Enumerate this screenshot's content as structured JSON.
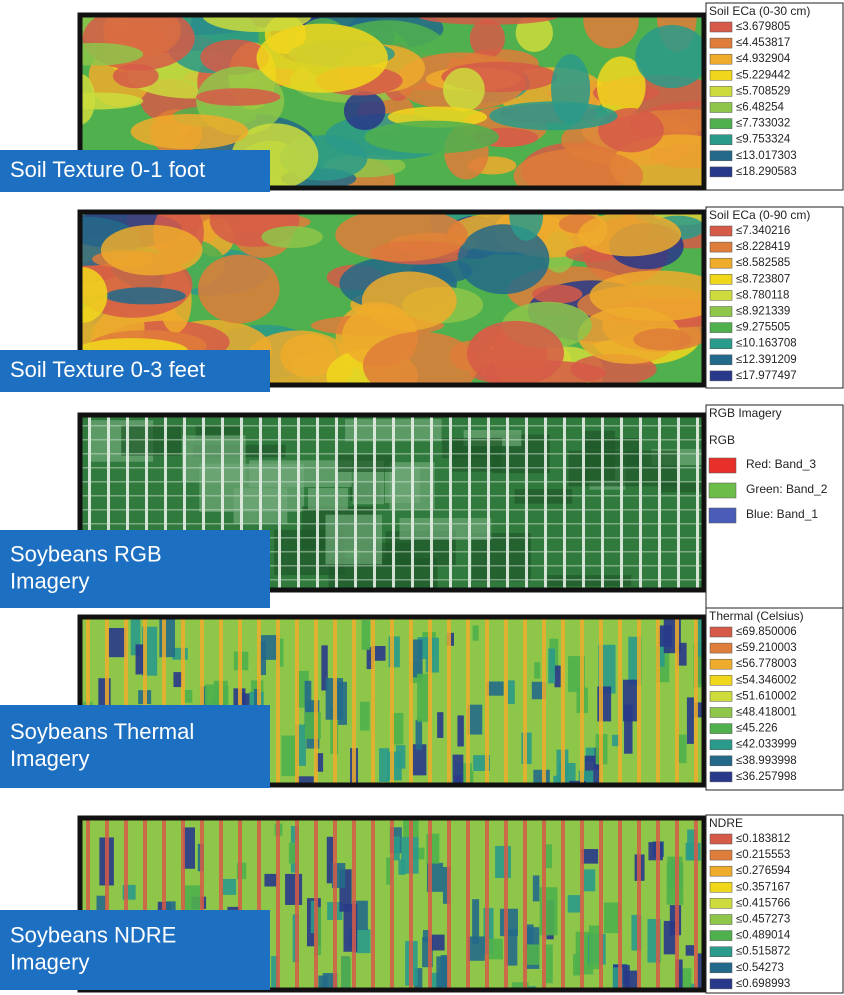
{
  "panels": [
    {
      "label": [
        "Soil Texture 0-1 foot"
      ],
      "legend": {
        "title": "Soil ECa (0-30 cm)",
        "items": [
          {
            "label": "≤3.679805",
            "color": "#d65a48"
          },
          {
            "label": "≤4.453817",
            "color": "#df7d3a"
          },
          {
            "label": "≤4.932904",
            "color": "#efab2c"
          },
          {
            "label": "≤5.229442",
            "color": "#f1d71c"
          },
          {
            "label": "≤5.708529",
            "color": "#cddc3c"
          },
          {
            "label": "≤6.48254",
            "color": "#8ec64a"
          },
          {
            "label": "≤7.733032",
            "color": "#4fb04d"
          },
          {
            "label": "≤9.753324",
            "color": "#2a9a8a"
          },
          {
            "label": "≤13.017303",
            "color": "#236a8a"
          },
          {
            "label": "≤18.290583",
            "color": "#28388a"
          }
        ]
      }
    },
    {
      "label": [
        "Soil Texture 0-3 feet"
      ],
      "legend": {
        "title": "Soil ECa (0-90 cm)",
        "items": [
          {
            "label": "≤7.340216",
            "color": "#d65a48"
          },
          {
            "label": "≤8.228419",
            "color": "#df7d3a"
          },
          {
            "label": "≤8.582585",
            "color": "#efab2c"
          },
          {
            "label": "≤8.723807",
            "color": "#f1d71c"
          },
          {
            "label": "≤8.780118",
            "color": "#cddc3c"
          },
          {
            "label": "≤8.921339",
            "color": "#8ec64a"
          },
          {
            "label": "≤9.275505",
            "color": "#4fb04d"
          },
          {
            "label": "≤10.163708",
            "color": "#2a9a8a"
          },
          {
            "label": "≤12.391209",
            "color": "#236a8a"
          },
          {
            "label": "≤17.977497",
            "color": "#28388a"
          }
        ]
      }
    },
    {
      "label": [
        "Soybeans RGB",
        "Imagery"
      ],
      "legend": {
        "title": "RGB Imagery",
        "subtitle": "RGB",
        "items": [
          {
            "label": "Red: Band_3",
            "color": "#e8302a"
          },
          {
            "label": "Green: Band_2",
            "color": "#6cbc4a"
          },
          {
            "label": "Blue: Band_1",
            "color": "#4a5cb8"
          }
        ]
      }
    },
    {
      "label": [
        "Soybeans Thermal",
        "Imagery"
      ],
      "legend": {
        "title": "Thermal (Celsius)",
        "items": [
          {
            "label": "≤69.850006",
            "color": "#d65a48"
          },
          {
            "label": "≤59.210003",
            "color": "#df7d3a"
          },
          {
            "label": "≤56.778003",
            "color": "#efab2c"
          },
          {
            "label": "≤54.346002",
            "color": "#f1d71c"
          },
          {
            "label": "≤51.610002",
            "color": "#cddc3c"
          },
          {
            "label": "≤48.418001",
            "color": "#8ec64a"
          },
          {
            "label": "≤45.226",
            "color": "#4fb04d"
          },
          {
            "label": "≤42.033999",
            "color": "#2a9a8a"
          },
          {
            "label": "≤38.993998",
            "color": "#236a8a"
          },
          {
            "label": "≤36.257998",
            "color": "#28388a"
          }
        ]
      }
    },
    {
      "label": [
        "Soybeans NDRE",
        "Imagery"
      ],
      "legend": {
        "title": "NDRE",
        "items": [
          {
            "label": "≤0.183812",
            "color": "#d65a48"
          },
          {
            "label": "≤0.215553",
            "color": "#df7d3a"
          },
          {
            "label": "≤0.276594",
            "color": "#efab2c"
          },
          {
            "label": "≤0.357167",
            "color": "#f1d71c"
          },
          {
            "label": "≤0.415766",
            "color": "#cddc3c"
          },
          {
            "label": "≤0.457273",
            "color": "#8ec64a"
          },
          {
            "label": "≤0.489014",
            "color": "#4fb04d"
          },
          {
            "label": "≤0.515872",
            "color": "#2a9a8a"
          },
          {
            "label": "≤0.54273",
            "color": "#236a8a"
          },
          {
            "label": "≤0.698993",
            "color": "#28388a"
          }
        ]
      }
    }
  ]
}
